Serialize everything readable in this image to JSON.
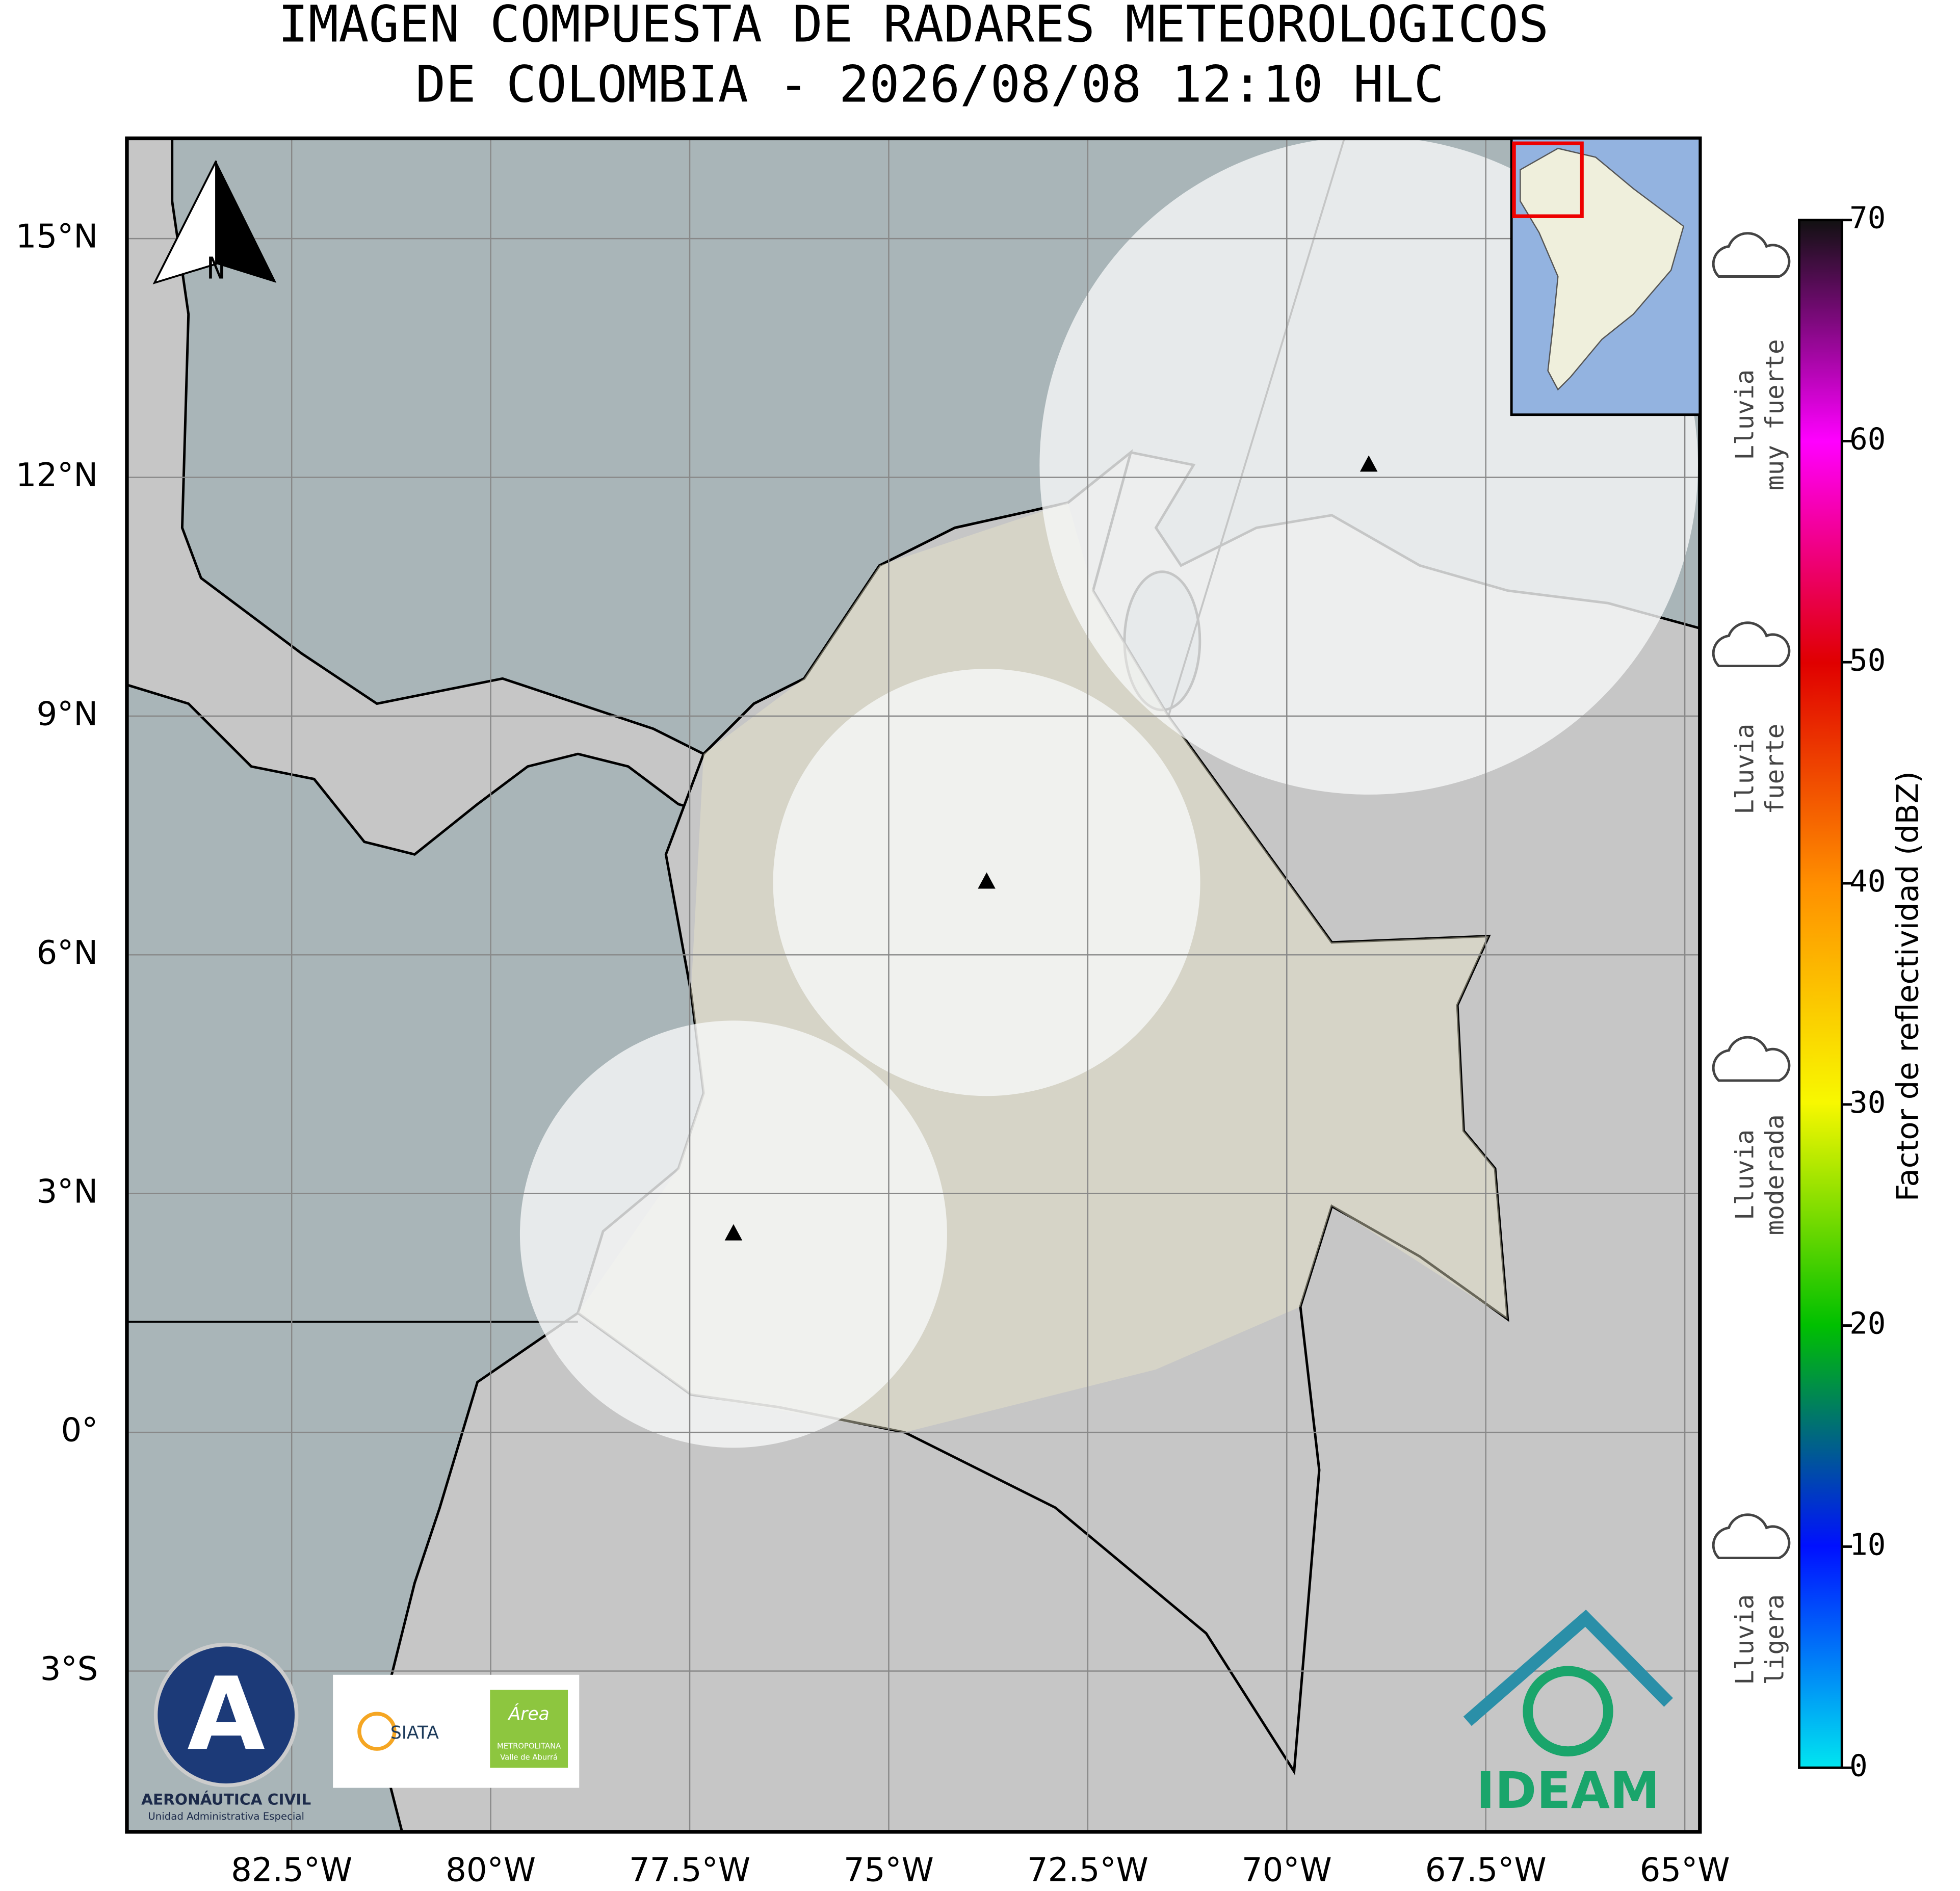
{
  "title": [
    "IMAGEN COMPUESTA DE RADARES METEOROLOGICOS",
    "DE COLOMBIA - 2026/08/08 12:10 HLC"
  ],
  "map": {
    "xlim": [
      -84.57,
      -64.81
    ],
    "ylim": [
      -5.02,
      16.26
    ],
    "xticks": [
      {
        "value": -82.5,
        "label": "82.5°W"
      },
      {
        "value": -80,
        "label": "80°W"
      },
      {
        "value": -77.5,
        "label": "77.5°W"
      },
      {
        "value": -75,
        "label": "75°W"
      },
      {
        "value": -72.5,
        "label": "72.5°W"
      },
      {
        "value": -70,
        "label": "70°W"
      },
      {
        "value": -67.5,
        "label": "67.5°W"
      },
      {
        "value": -65,
        "label": "65°W"
      }
    ],
    "yticks": [
      {
        "value": -3,
        "label": "3°S"
      },
      {
        "value": 0,
        "label": "0°"
      },
      {
        "value": 3,
        "label": "3°N"
      },
      {
        "value": 6,
        "label": "6°N"
      },
      {
        "value": 9,
        "label": "9°N"
      },
      {
        "value": 12,
        "label": "12°N"
      },
      {
        "value": 15,
        "label": "15°N"
      }
    ],
    "grid": true,
    "north_label": "N",
    "radars": [
      {
        "lon": -73.77,
        "lat": 6.91
      },
      {
        "lon": -76.95,
        "lat": 2.49
      },
      {
        "lon": -68.97,
        "lat": 12.15
      }
    ]
  },
  "colorbar": {
    "label": "Factor de reflectividad (dBZ)",
    "lim": [
      0,
      70
    ],
    "ticks": [
      0,
      10,
      20,
      30,
      40,
      50,
      60,
      70
    ]
  },
  "rain_legend": [
    {
      "lines": [
        "Lluvia",
        "muy fuerte"
      ]
    },
    {
      "lines": [
        "Lluvia",
        "fuerte"
      ]
    },
    {
      "lines": [
        "Lluvia",
        "moderada"
      ]
    },
    {
      "lines": [
        "Lluvia",
        "ligera"
      ]
    }
  ],
  "logos": {
    "aerocivil": [
      "AERONÁUTICA CIVIL",
      "Unidad Administrativa Especial"
    ],
    "siata": "SIATA",
    "area": [
      "Área",
      "METROPOLITANA",
      "Valle de Aburrá"
    ],
    "ideam": "IDEAM"
  }
}
